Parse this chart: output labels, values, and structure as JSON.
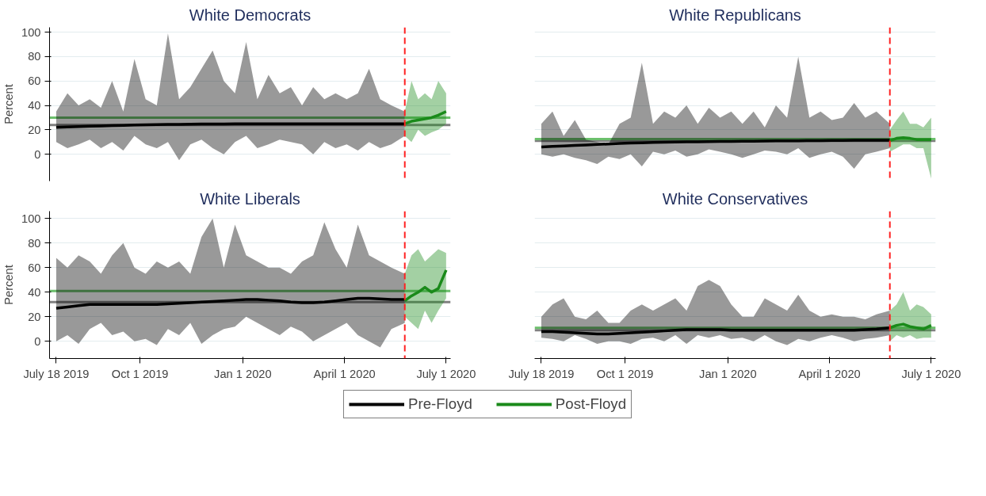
{
  "chart_data": [
    {
      "type": "line",
      "title": "White Democrats",
      "ylabel": "Percent",
      "ylim": [
        -22,
        104
      ],
      "yticks": [
        0,
        20,
        40,
        60,
        80,
        100
      ],
      "xlim": [
        "2019-07-12",
        "2020-07-05"
      ],
      "tick_labels": "y",
      "grid": "y",
      "legend": "bottom",
      "series": [
        {
          "name": "Pre-Floyd",
          "color": "#000000",
          "x": [
            "2019-07-18",
            "2019-07-28",
            "2019-08-07",
            "2019-08-17",
            "2019-08-27",
            "2019-09-06",
            "2019-09-16",
            "2019-09-26",
            "2019-10-06",
            "2019-10-16",
            "2019-10-26",
            "2019-11-05",
            "2019-11-15",
            "2019-11-25",
            "2019-12-05",
            "2019-12-15",
            "2019-12-25",
            "2020-01-04",
            "2020-01-14",
            "2020-01-24",
            "2020-02-03",
            "2020-02-13",
            "2020-02-23",
            "2020-03-04",
            "2020-03-14",
            "2020-03-24",
            "2020-04-03",
            "2020-04-13",
            "2020-04-23",
            "2020-05-03",
            "2020-05-13",
            "2020-05-25"
          ],
          "values": [
            22,
            22.3,
            22.6,
            22.9,
            23.2,
            23.5,
            23.7,
            23.9,
            24.1,
            24.3,
            24.4,
            24.5,
            24.6,
            24.7,
            24.8,
            24.8,
            24.9,
            24.9,
            25,
            25,
            25,
            25,
            25,
            25,
            25,
            25,
            25,
            25,
            25,
            25,
            25,
            25
          ],
          "upper": [
            35,
            50,
            40,
            45,
            38,
            60,
            35,
            78,
            45,
            40,
            99,
            45,
            55,
            70,
            85,
            60,
            50,
            92,
            45,
            65,
            50,
            55,
            40,
            55,
            45,
            50,
            45,
            50,
            70,
            45,
            40,
            35
          ],
          "lower": [
            10,
            5,
            8,
            12,
            5,
            10,
            3,
            15,
            8,
            5,
            10,
            -5,
            8,
            12,
            5,
            0,
            10,
            15,
            5,
            8,
            12,
            10,
            8,
            0,
            10,
            5,
            8,
            3,
            10,
            5,
            8,
            15
          ]
        },
        {
          "name": "Post-Floyd",
          "color": "#1a8a1a",
          "x": [
            "2020-05-25",
            "2020-05-31",
            "2020-06-06",
            "2020-06-12",
            "2020-06-18",
            "2020-06-24",
            "2020-07-01"
          ],
          "values": [
            25,
            27,
            28,
            29,
            30,
            32,
            35
          ],
          "upper": [
            35,
            60,
            45,
            50,
            45,
            60,
            50
          ],
          "lower": [
            15,
            10,
            20,
            15,
            18,
            20,
            25
          ]
        }
      ],
      "ref_lines": [
        {
          "axis": "y",
          "value": 24,
          "color": "#808080"
        },
        {
          "axis": "y",
          "value": 30,
          "color": "#6cbf6c"
        },
        {
          "axis": "x",
          "value": "2020-05-25",
          "color": "#ff2020",
          "line_style": "dashed"
        }
      ]
    },
    {
      "type": "line",
      "title": "White Republicans",
      "ylim": [
        -22,
        104
      ],
      "yticks": [
        0,
        20,
        40,
        60,
        80,
        100
      ],
      "xlim": [
        "2019-07-12",
        "2020-07-05"
      ],
      "tick_labels": false,
      "grid": "y",
      "series": [
        {
          "color": "#000000",
          "x": [
            "2019-07-18",
            "2019-07-28",
            "2019-08-07",
            "2019-08-17",
            "2019-08-27",
            "2019-09-06",
            "2019-09-16",
            "2019-09-26",
            "2019-10-06",
            "2019-10-16",
            "2019-10-26",
            "2019-11-05",
            "2019-11-15",
            "2019-11-25",
            "2019-12-05",
            "2019-12-15",
            "2019-12-25",
            "2020-01-04",
            "2020-01-14",
            "2020-01-24",
            "2020-02-03",
            "2020-02-13",
            "2020-02-23",
            "2020-03-04",
            "2020-03-14",
            "2020-03-24",
            "2020-04-03",
            "2020-04-13",
            "2020-04-23",
            "2020-05-03",
            "2020-05-13",
            "2020-05-25"
          ],
          "values": [
            6,
            6.4,
            6.8,
            7.2,
            7.6,
            8,
            8.4,
            8.8,
            9.1,
            9.4,
            9.6,
            9.8,
            10,
            10.1,
            10.2,
            10.3,
            10.4,
            10.5,
            10.6,
            10.7,
            10.8,
            10.9,
            11,
            11,
            11.1,
            11.2,
            11.3,
            11.3,
            11.4,
            11.4,
            11.5,
            11.5
          ],
          "upper": [
            25,
            35,
            15,
            28,
            12,
            10,
            8,
            25,
            30,
            75,
            25,
            35,
            30,
            40,
            25,
            38,
            30,
            35,
            25,
            35,
            22,
            40,
            30,
            80,
            30,
            35,
            28,
            30,
            42,
            30,
            35,
            25
          ],
          "lower": [
            0,
            -2,
            0,
            -3,
            -5,
            -8,
            -2,
            -4,
            0,
            -10,
            2,
            0,
            3,
            -2,
            0,
            4,
            2,
            0,
            -3,
            0,
            3,
            2,
            0,
            5,
            -3,
            0,
            2,
            -2,
            -12,
            0,
            2,
            5
          ]
        },
        {
          "color": "#1a8a1a",
          "x": [
            "2020-05-25",
            "2020-05-31",
            "2020-06-06",
            "2020-06-12",
            "2020-06-18",
            "2020-06-24",
            "2020-07-01"
          ],
          "values": [
            11,
            13,
            13.5,
            13,
            12,
            12,
            12
          ],
          "upper": [
            20,
            28,
            35,
            25,
            25,
            22,
            30
          ],
          "lower": [
            2,
            5,
            8,
            8,
            5,
            5,
            -20
          ]
        }
      ],
      "ref_lines": [
        {
          "axis": "y",
          "value": 11,
          "color": "#808080"
        },
        {
          "axis": "y",
          "value": 12.5,
          "color": "#6cbf6c"
        },
        {
          "axis": "x",
          "value": "2020-05-25",
          "color": "#ff2020",
          "line_style": "dashed"
        }
      ]
    },
    {
      "type": "line",
      "title": "White Liberals",
      "ylabel": "Percent",
      "ylim": [
        -14,
        106
      ],
      "yticks": [
        0,
        20,
        40,
        60,
        80,
        100
      ],
      "xlim": [
        "2019-07-12",
        "2020-07-05"
      ],
      "xticks": [
        {
          "value": "2019-07-18",
          "label": "July 18 2019"
        },
        {
          "value": "2019-10-01",
          "label": "Oct 1 2019"
        },
        {
          "value": "2020-01-01",
          "label": "Jan 1 2020"
        },
        {
          "value": "2020-04-01",
          "label": "April 1 2020"
        },
        {
          "value": "2020-07-01",
          "label": "July 1 2020"
        }
      ],
      "grid": "y",
      "series": [
        {
          "color": "#000000",
          "x": [
            "2019-07-18",
            "2019-07-28",
            "2019-08-07",
            "2019-08-17",
            "2019-08-27",
            "2019-09-06",
            "2019-09-16",
            "2019-09-26",
            "2019-10-06",
            "2019-10-16",
            "2019-10-26",
            "2019-11-05",
            "2019-11-15",
            "2019-11-25",
            "2019-12-05",
            "2019-12-15",
            "2019-12-25",
            "2020-01-04",
            "2020-01-14",
            "2020-01-24",
            "2020-02-03",
            "2020-02-13",
            "2020-02-23",
            "2020-03-04",
            "2020-03-14",
            "2020-03-24",
            "2020-04-03",
            "2020-04-13",
            "2020-04-23",
            "2020-05-03",
            "2020-05-13",
            "2020-05-25"
          ],
          "values": [
            27,
            28,
            29,
            30,
            30,
            30,
            30,
            30,
            30,
            30,
            30.5,
            31,
            31.5,
            32,
            32.5,
            33,
            33.5,
            34,
            34,
            33.5,
            33,
            32,
            31.5,
            31.5,
            32,
            33,
            34,
            35,
            35,
            34.5,
            34,
            34
          ],
          "upper": [
            68,
            60,
            70,
            65,
            55,
            70,
            80,
            60,
            55,
            65,
            60,
            65,
            55,
            85,
            100,
            60,
            95,
            70,
            65,
            60,
            60,
            55,
            65,
            70,
            97,
            75,
            60,
            95,
            70,
            65,
            60,
            55
          ],
          "lower": [
            0,
            5,
            -2,
            10,
            15,
            5,
            8,
            0,
            2,
            -3,
            10,
            5,
            15,
            -2,
            5,
            10,
            12,
            20,
            15,
            10,
            5,
            12,
            8,
            0,
            5,
            10,
            15,
            5,
            0,
            -5,
            10,
            15
          ]
        },
        {
          "color": "#1a8a1a",
          "x": [
            "2020-05-25",
            "2020-05-31",
            "2020-06-06",
            "2020-06-12",
            "2020-06-18",
            "2020-06-24",
            "2020-07-01"
          ],
          "values": [
            33,
            37,
            40,
            44,
            40,
            43,
            58
          ],
          "upper": [
            55,
            70,
            75,
            65,
            70,
            75,
            72
          ],
          "lower": [
            20,
            15,
            10,
            25,
            15,
            25,
            35
          ]
        }
      ],
      "ref_lines": [
        {
          "axis": "y",
          "value": 32,
          "color": "#808080"
        },
        {
          "axis": "y",
          "value": 41,
          "color": "#6cbf6c"
        },
        {
          "axis": "x",
          "value": "2020-05-25",
          "color": "#ff2020",
          "line_style": "dashed"
        }
      ]
    },
    {
      "type": "line",
      "title": "White Conservatives",
      "ylim": [
        -14,
        106
      ],
      "yticks": [
        0,
        20,
        40,
        60,
        80,
        100
      ],
      "xlim": [
        "2019-07-12",
        "2020-07-05"
      ],
      "xticks": [
        {
          "value": "2019-07-18",
          "label": "July 18 2019"
        },
        {
          "value": "2019-10-01",
          "label": "Oct 1 2019"
        },
        {
          "value": "2020-01-01",
          "label": "Jan 1 2020"
        },
        {
          "value": "2020-04-01",
          "label": "April 1 2020"
        },
        {
          "value": "2020-07-01",
          "label": "July 1 2020"
        }
      ],
      "tick_labels": "x",
      "grid": "y",
      "series": [
        {
          "color": "#000000",
          "x": [
            "2019-07-18",
            "2019-07-28",
            "2019-08-07",
            "2019-08-17",
            "2019-08-27",
            "2019-09-06",
            "2019-09-16",
            "2019-09-26",
            "2019-10-06",
            "2019-10-16",
            "2019-10-26",
            "2019-11-05",
            "2019-11-15",
            "2019-11-25",
            "2019-12-05",
            "2019-12-15",
            "2019-12-25",
            "2020-01-04",
            "2020-01-14",
            "2020-01-24",
            "2020-02-03",
            "2020-02-13",
            "2020-02-23",
            "2020-03-04",
            "2020-03-14",
            "2020-03-24",
            "2020-04-03",
            "2020-04-13",
            "2020-04-23",
            "2020-05-03",
            "2020-05-13",
            "2020-05-25"
          ],
          "values": [
            8,
            8,
            7.5,
            7,
            6.5,
            6,
            6,
            6.5,
            7,
            7.5,
            8,
            8.5,
            9,
            9.5,
            9.5,
            9.5,
            9.5,
            9,
            9,
            9,
            9,
            9,
            9,
            9,
            9,
            9,
            9,
            9,
            9,
            9.5,
            10,
            11
          ],
          "upper": [
            20,
            30,
            35,
            20,
            18,
            25,
            15,
            15,
            25,
            30,
            25,
            30,
            35,
            25,
            45,
            50,
            45,
            30,
            20,
            20,
            35,
            30,
            25,
            38,
            25,
            20,
            22,
            20,
            20,
            18,
            22,
            25
          ],
          "lower": [
            3,
            2,
            0,
            5,
            2,
            -2,
            0,
            0,
            -2,
            2,
            3,
            0,
            5,
            -2,
            5,
            3,
            5,
            2,
            3,
            0,
            5,
            0,
            -3,
            2,
            0,
            3,
            5,
            3,
            0,
            2,
            3,
            5
          ]
        },
        {
          "color": "#1a8a1a",
          "x": [
            "2020-05-25",
            "2020-05-31",
            "2020-06-06",
            "2020-06-12",
            "2020-06-18",
            "2020-06-24",
            "2020-07-01"
          ],
          "values": [
            11,
            13,
            14,
            12,
            11,
            10,
            13
          ],
          "upper": [
            25,
            30,
            40,
            25,
            30,
            28,
            22
          ],
          "lower": [
            0,
            5,
            3,
            5,
            2,
            3,
            3
          ]
        }
      ],
      "ref_lines": [
        {
          "axis": "y",
          "value": 9,
          "color": "#808080"
        },
        {
          "axis": "y",
          "value": 11,
          "color": "#6cbf6c"
        },
        {
          "axis": "x",
          "value": "2020-05-25",
          "color": "#ff2020",
          "line_style": "dashed"
        }
      ]
    }
  ]
}
